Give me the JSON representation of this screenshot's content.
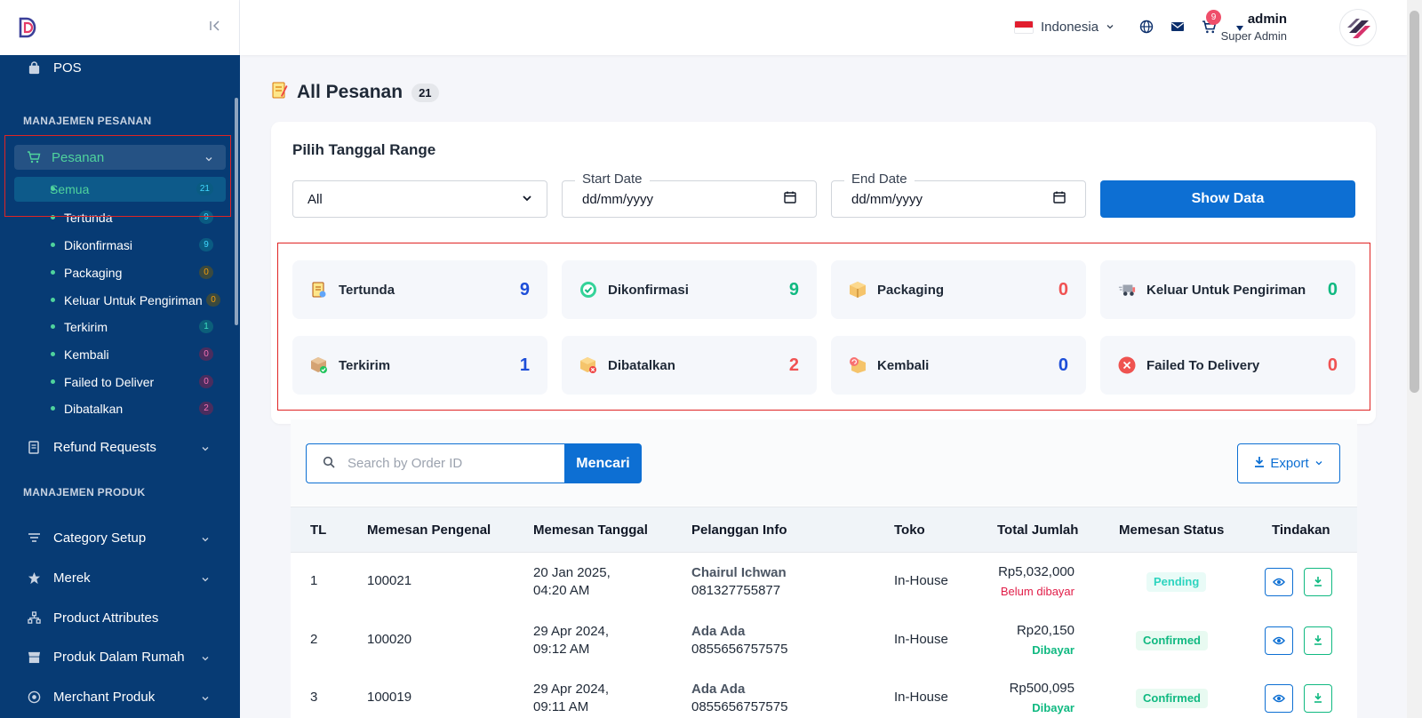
{
  "sidebar": {
    "pos_label": "POS",
    "section_orders": "MANAJEMEN PESANAN",
    "orders_label": "Pesanan",
    "sub_items": [
      {
        "label": "Semua",
        "count": "21",
        "color": "#41d7ff"
      },
      {
        "label": "Tertunda",
        "count": "9",
        "color": "#41d7ff"
      },
      {
        "label": "Dikonfirmasi",
        "count": "9",
        "color": "#41d7ff"
      },
      {
        "label": "Packaging",
        "count": "0",
        "color": "#f59e0b"
      },
      {
        "label": "Keluar Untuk Pengiriman",
        "count": "0",
        "color": "#f59e0b"
      },
      {
        "label": "Terkirim",
        "count": "1",
        "color": "#41d7ff"
      },
      {
        "label": "Kembali",
        "count": "0",
        "color": "#f472b6"
      },
      {
        "label": "Failed to Deliver",
        "count": "0",
        "color": "#f472b6"
      },
      {
        "label": "Dibatalkan",
        "count": "2",
        "color": "#f472b6"
      }
    ],
    "refund_label": "Refund Requests",
    "section_products": "MANAJEMEN PRODUK",
    "product_items": [
      "Category Setup",
      "Merek",
      "Product Attributes",
      "Produk Dalam Rumah",
      "Merchant Produk"
    ]
  },
  "header": {
    "language": "Indonesia",
    "cart_count": "9",
    "user_name": "admin",
    "user_role": "Super Admin"
  },
  "page": {
    "title": "All Pesanan",
    "title_count": "21"
  },
  "filter": {
    "title": "Pilih Tanggal Range",
    "select_value": "All",
    "start_label": "Start Date",
    "end_label": "End Date",
    "date_placeholder": "dd/mm/yyyy",
    "show_button": "Show Data"
  },
  "stats": [
    {
      "label": "Tertunda",
      "value": "9",
      "color": "#1d4ed8",
      "icon": "pending-icon"
    },
    {
      "label": "Dikonfirmasi",
      "value": "9",
      "color": "#10b981",
      "icon": "confirmed-icon"
    },
    {
      "label": "Packaging",
      "value": "0",
      "color": "#f05252",
      "icon": "package-icon"
    },
    {
      "label": "Keluar Untuk Pengiriman",
      "value": "0",
      "color": "#10b981",
      "icon": "delivery-truck-icon"
    },
    {
      "label": "Terkirim",
      "value": "1",
      "color": "#1d4ed8",
      "icon": "delivered-icon"
    },
    {
      "label": "Dibatalkan",
      "value": "2",
      "color": "#f05252",
      "icon": "canceled-icon"
    },
    {
      "label": "Kembali",
      "value": "0",
      "color": "#1d4ed8",
      "icon": "returned-icon"
    },
    {
      "label": "Failed To Delivery",
      "value": "0",
      "color": "#f05252",
      "icon": "failed-icon"
    }
  ],
  "search": {
    "placeholder": "Search by Order ID",
    "button": "Mencari",
    "export": "Export"
  },
  "table": {
    "headers": [
      "TL",
      "Memesan Pengenal",
      "Memesan Tanggal",
      "Pelanggan Info",
      "Toko",
      "Total Jumlah",
      "Memesan Status",
      "Tindakan"
    ],
    "rows": [
      {
        "sl": "1",
        "order_id": "100021",
        "date": "20 Jan 2025,",
        "time": "04:20 AM",
        "customer": "Chairul Ichwan",
        "phone": "081327755877",
        "store": "In-House",
        "total": "Rp5,032,000",
        "payment": "Belum dibayar",
        "status": "Pending"
      },
      {
        "sl": "2",
        "order_id": "100020",
        "date": "29 Apr 2024,",
        "time": "09:12 AM",
        "customer": "Ada Ada",
        "phone": "0855656757575",
        "store": "In-House",
        "total": "Rp20,150",
        "payment": "Dibayar",
        "status": "Confirmed"
      },
      {
        "sl": "3",
        "order_id": "100019",
        "date": "29 Apr 2024,",
        "time": "09:11 AM",
        "customer": "Ada Ada",
        "phone": "0855656757575",
        "store": "In-House",
        "total": "Rp500,095",
        "payment": "Dibayar",
        "status": "Confirmed"
      }
    ]
  }
}
